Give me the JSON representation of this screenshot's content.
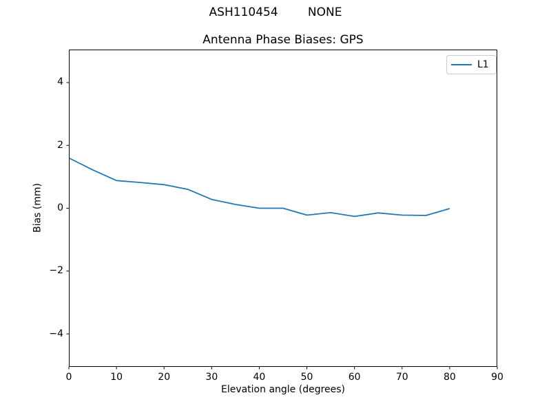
{
  "figure": {
    "suptitle": "ASH110454        NONE",
    "background": "#ffffff",
    "frame_color": "#000000",
    "text_color": "#000000"
  },
  "chart_data": {
    "type": "line",
    "title": "Antenna Phase Biases: GPS",
    "xlabel": "Elevation angle (degrees)",
    "ylabel": "Bias (mm)",
    "xlim": [
      0,
      90
    ],
    "ylim": [
      -5.05,
      5.05
    ],
    "xticks": [
      0,
      10,
      20,
      30,
      40,
      50,
      60,
      70,
      80,
      90
    ],
    "yticks": [
      -4,
      -2,
      0,
      2,
      4
    ],
    "grid": false,
    "legend_position": "upper right",
    "x": [
      0,
      5,
      10,
      15,
      20,
      25,
      30,
      35,
      40,
      45,
      50,
      55,
      60,
      65,
      70,
      75,
      80
    ],
    "series": [
      {
        "name": "L1",
        "color": "#1f77b4",
        "values": [
          1.6,
          1.22,
          0.88,
          0.82,
          0.75,
          0.6,
          0.28,
          0.12,
          0.0,
          0.0,
          -0.22,
          -0.14,
          -0.26,
          -0.15,
          -0.22,
          -0.23,
          -0.01
        ]
      }
    ]
  }
}
